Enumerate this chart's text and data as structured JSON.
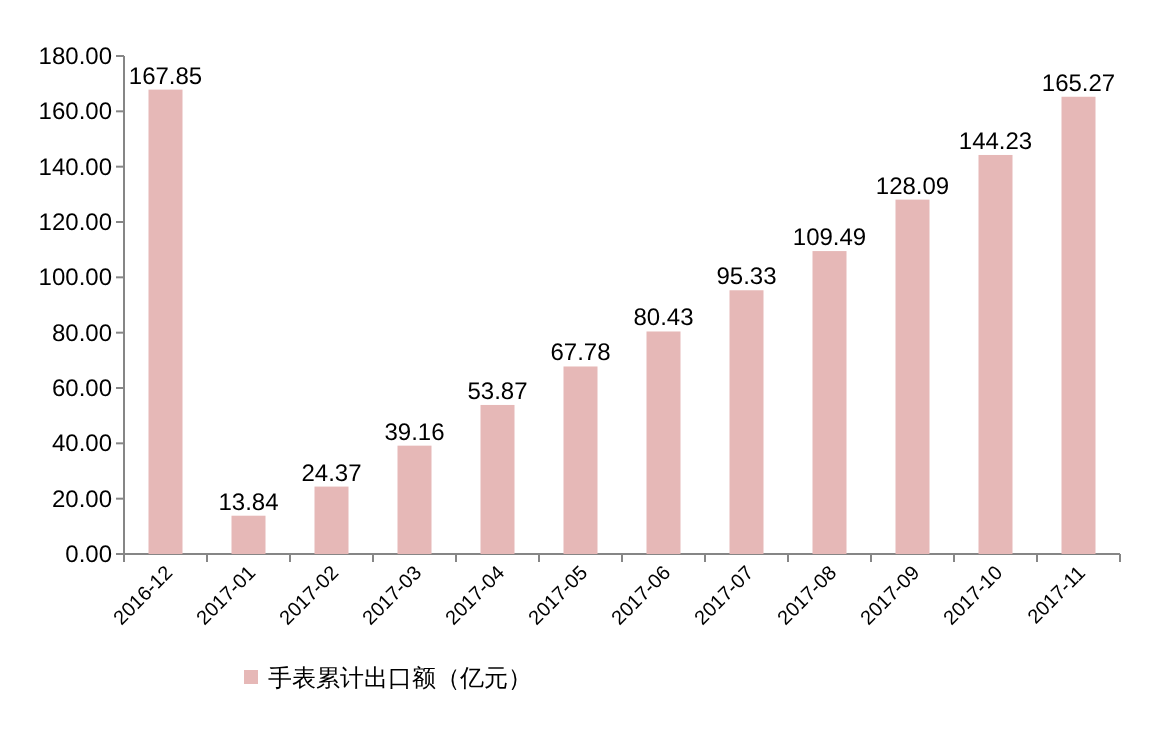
{
  "chart_data": {
    "type": "bar",
    "categories": [
      "2016-12",
      "2017-01",
      "2017-02",
      "2017-03",
      "2017-04",
      "2017-05",
      "2017-06",
      "2017-07",
      "2017-08",
      "2017-09",
      "2017-10",
      "2017-11"
    ],
    "series": [
      {
        "name": "手表累计出口额（亿元）",
        "color": "#e6b8b7",
        "values": [
          167.85,
          13.84,
          24.37,
          39.16,
          53.87,
          67.78,
          80.43,
          95.33,
          109.49,
          128.09,
          144.23,
          165.27
        ]
      }
    ],
    "ylim": [
      0,
      180
    ],
    "yticks": [
      {
        "value": 0,
        "label": "0.00"
      },
      {
        "value": 20,
        "label": "20.00"
      },
      {
        "value": 40,
        "label": "40.00"
      },
      {
        "value": 60,
        "label": "60.00"
      },
      {
        "value": 80,
        "label": "80.00"
      },
      {
        "value": 100,
        "label": "100.00"
      },
      {
        "value": 120,
        "label": "120.00"
      },
      {
        "value": 140,
        "label": "140.00"
      },
      {
        "value": 160,
        "label": "160.00"
      },
      {
        "value": 180,
        "label": "180.00"
      }
    ],
    "data_labels": true,
    "legend": "bottom",
    "grid": false
  }
}
